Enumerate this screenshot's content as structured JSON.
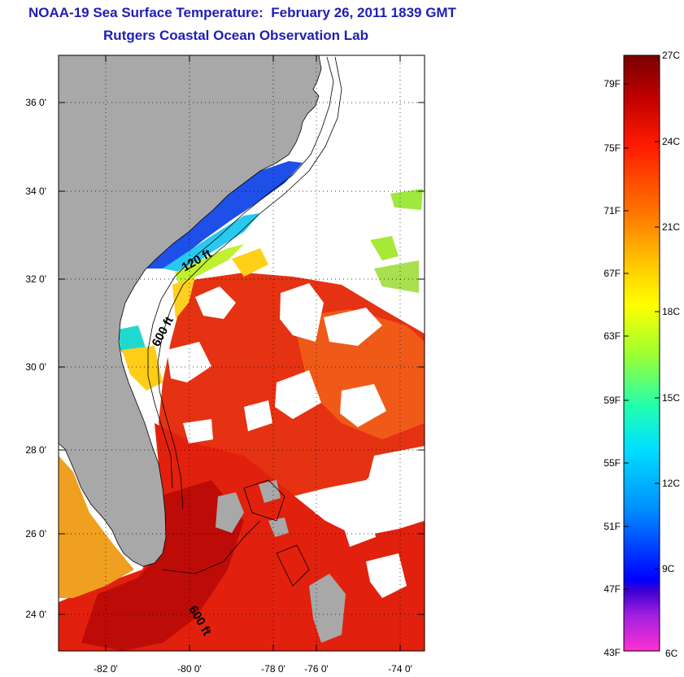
{
  "header": {
    "title": "NOAA-19 Sea Surface Temperature:  February 26, 2011 1839 GMT",
    "subtitle": "Rutgers Coastal Ocean Observation Lab"
  },
  "map": {
    "lat_ticks": [
      "36 0'",
      "34 0'",
      "32 0'",
      "30 0'",
      "28 0'",
      "26 0'",
      "24 0'"
    ],
    "lon_ticks": [
      "-82 0'",
      "-80 0'",
      "-78 0'",
      "-76 0'",
      "-74 0'"
    ],
    "contour_labels": [
      "120 ft",
      "600 ft",
      "600 ft"
    ],
    "colors": {
      "land": "#a8a8a8",
      "cloud": "#ffffff",
      "gulf_stream": "#e02010",
      "warm_core": "#b80808",
      "cold_shelf": "#2050e0"
    }
  },
  "colorbar": {
    "fahrenheit_labels": [
      "79F",
      "75F",
      "71F",
      "67F",
      "63F",
      "59F",
      "55F",
      "51F",
      "47F",
      "43F"
    ],
    "celsius_labels": [
      "27C",
      "24C",
      "21C",
      "18C",
      "15C",
      "12C",
      "9C",
      "6C"
    ]
  }
}
